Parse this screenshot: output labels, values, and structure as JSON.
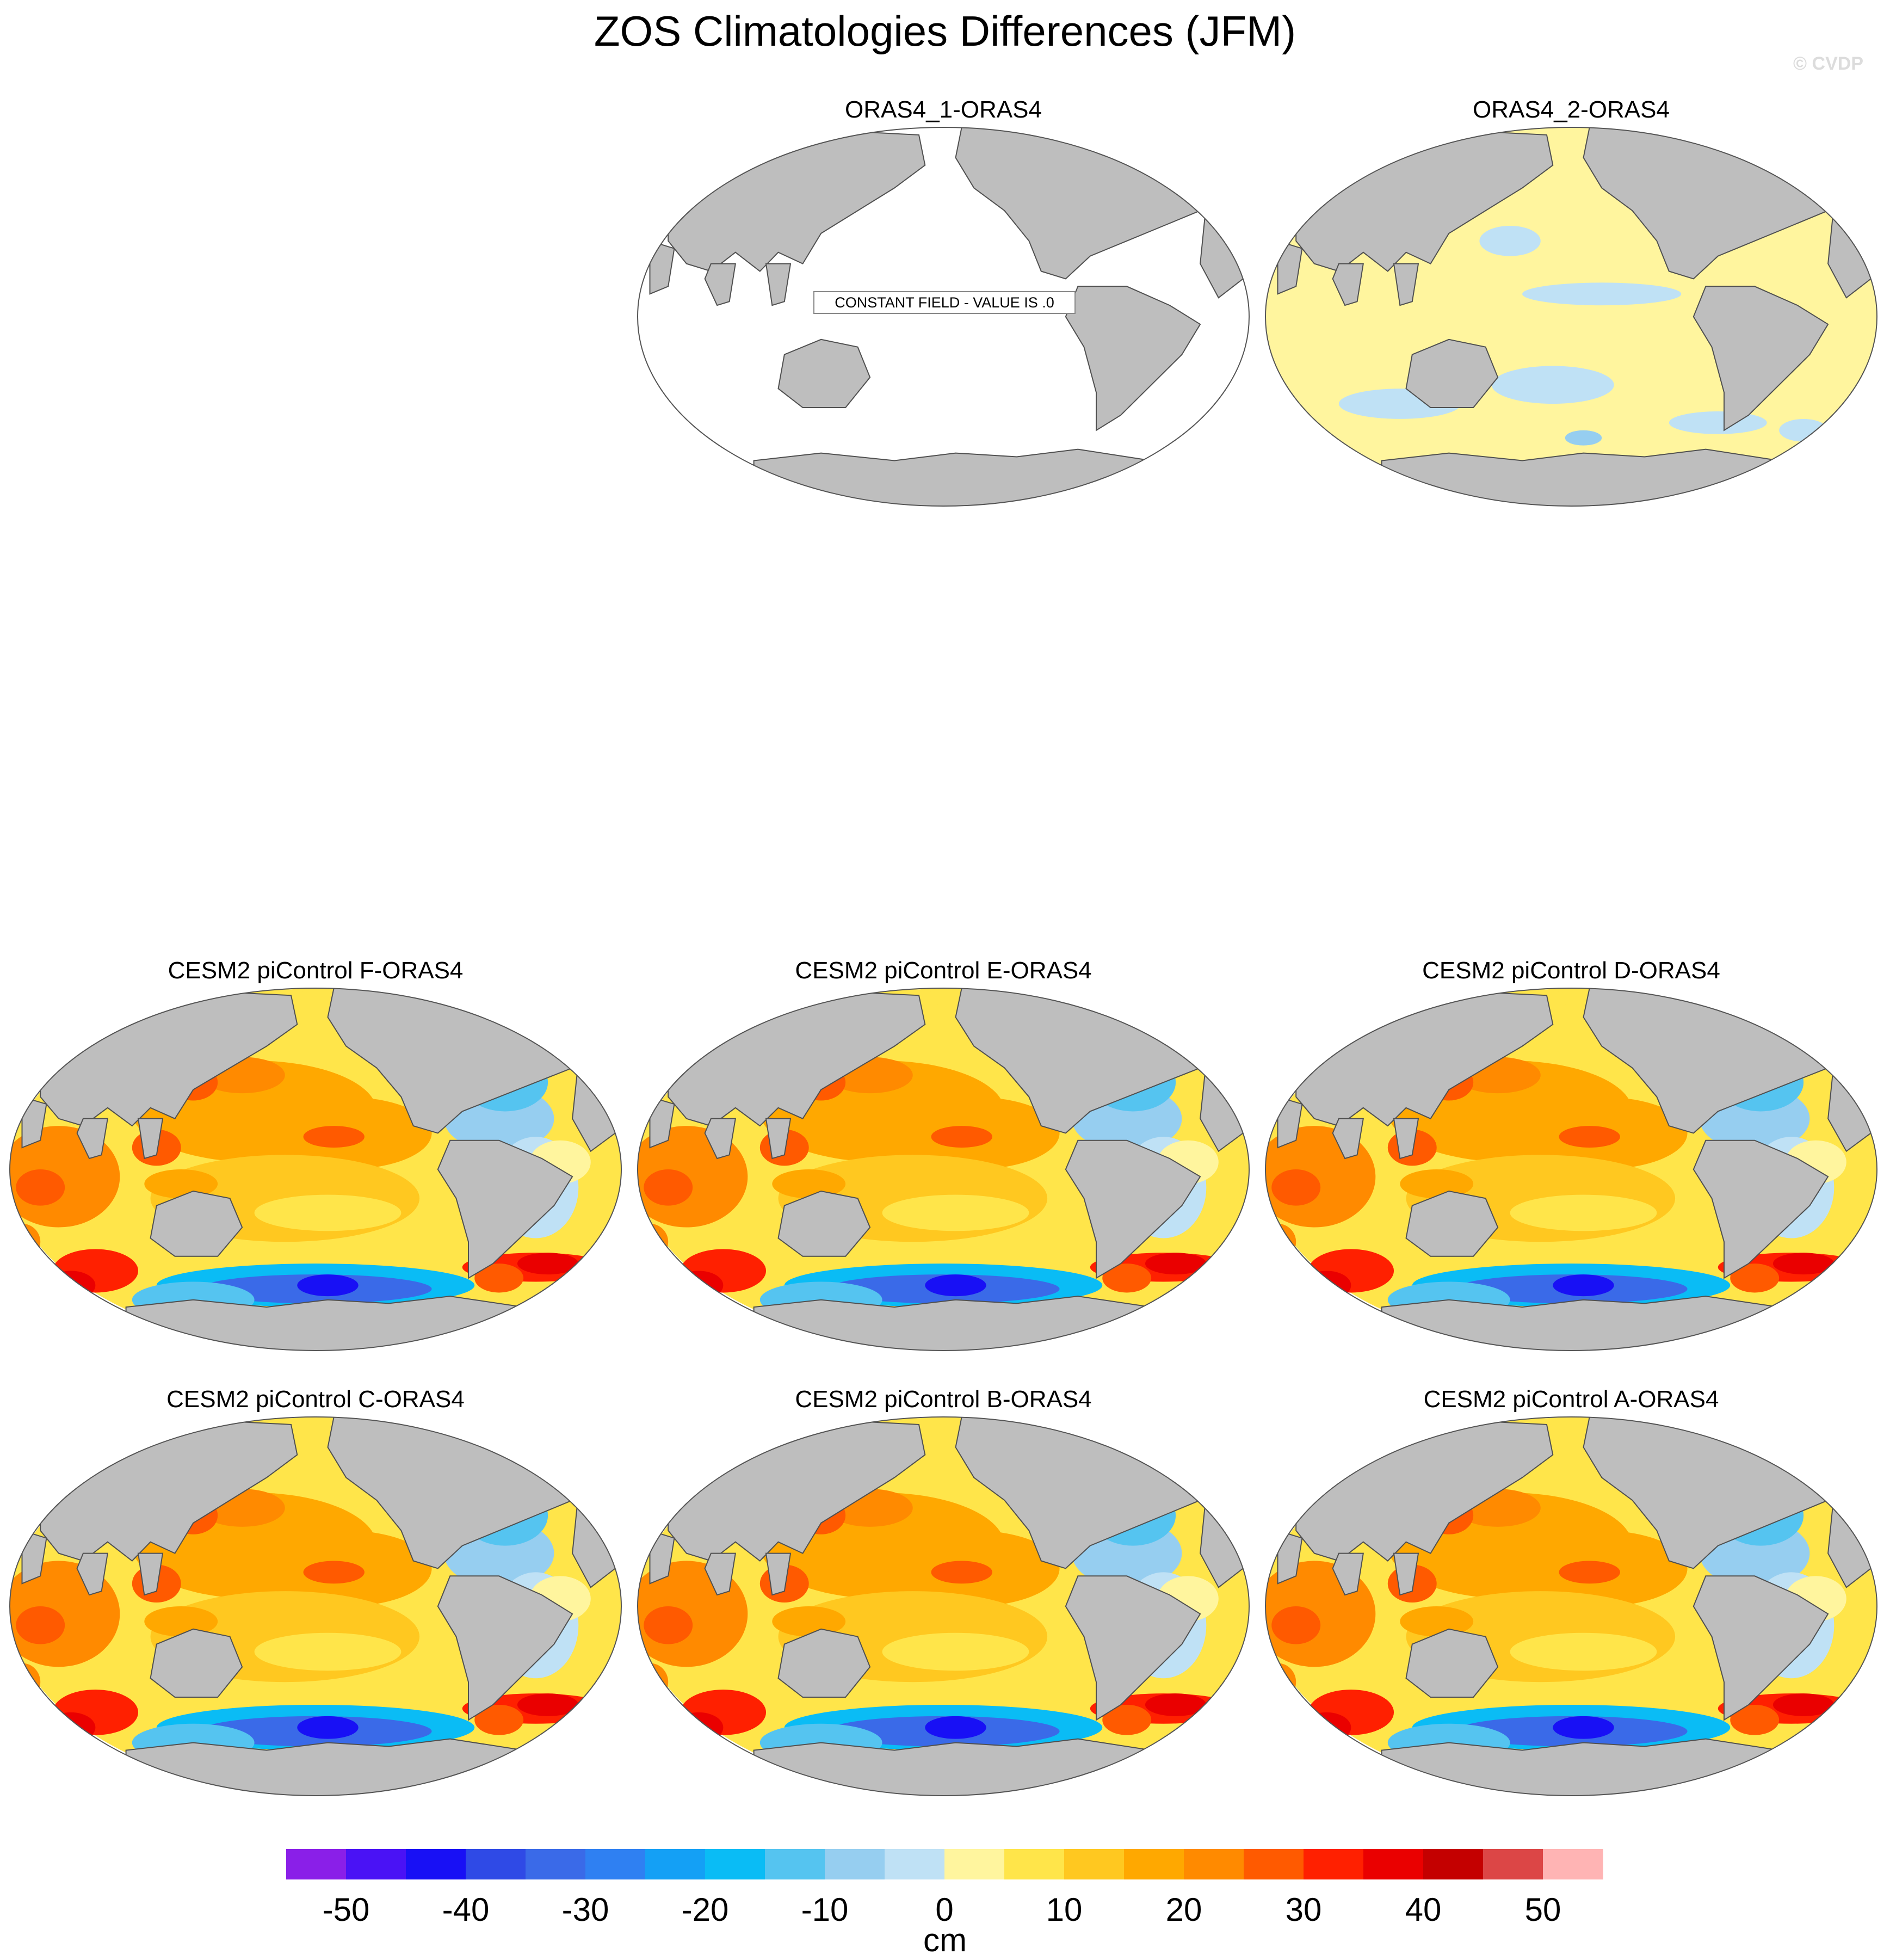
{
  "figure": {
    "title": "ZOS Climatologies Differences (JFM)",
    "copyright": "© CVDP"
  },
  "panels": [
    {
      "id": "oras4-1",
      "title": "ORAS4_1-ORAS4",
      "field": "constant",
      "note": "CONSTANT FIELD - VALUE IS .0"
    },
    {
      "id": "oras4-2",
      "title": "ORAS4_2-ORAS4",
      "field": "near-zero"
    },
    {
      "id": "f",
      "title": "CESM2 piControl F-ORAS4",
      "field": "cesm"
    },
    {
      "id": "e",
      "title": "CESM2 piControl E-ORAS4",
      "field": "cesm"
    },
    {
      "id": "d",
      "title": "CESM2 piControl D-ORAS4",
      "field": "cesm"
    },
    {
      "id": "c",
      "title": "CESM2 piControl C-ORAS4",
      "field": "cesm"
    },
    {
      "id": "b",
      "title": "CESM2 piControl B-ORAS4",
      "field": "cesm"
    },
    {
      "id": "a",
      "title": "CESM2 piControl A-ORAS4",
      "field": "cesm"
    }
  ],
  "colorbar": {
    "unit": "cm",
    "tick_labels": [
      "-50",
      "-40",
      "-30",
      "-20",
      "-10",
      "0",
      "10",
      "20",
      "30",
      "40",
      "50"
    ],
    "colors": [
      "#8a1fe8",
      "#4a12f5",
      "#1810f5",
      "#2f4ae6",
      "#3a6ae8",
      "#2f80f2",
      "#14a0f5",
      "#0abcf5",
      "#55c4f0",
      "#96cef0",
      "#bfe1f5",
      "#fff59e",
      "#ffe54a",
      "#ffc820",
      "#ffa800",
      "#ff8a00",
      "#ff5a00",
      "#ff2000",
      "#ea0000",
      "#c40000",
      "#dc4646",
      "#ffb4b4"
    ]
  },
  "colors": {
    "land": "#bebebe",
    "coast": "#505050"
  }
}
